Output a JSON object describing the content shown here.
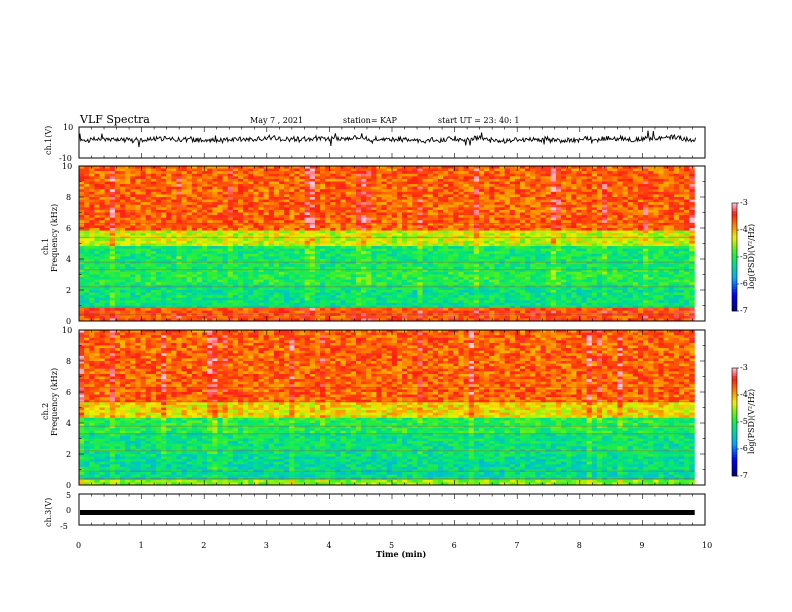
{
  "header": {
    "title": "VLF Spectra",
    "date": "May 7  , 2021",
    "station": "station= KAP",
    "start": "start  UT  =   23: 40: 1"
  },
  "chart_data": [
    {
      "type": "line",
      "ylabel": "ch.1(V)",
      "yticks": [
        "10",
        "-10"
      ],
      "ylim": [
        -10,
        10
      ],
      "xlim": [
        0,
        10
      ],
      "description_series": "ch.1 waveform",
      "y_level": 2
    },
    {
      "type": "heatmap",
      "ylabel_line1": "ch.1",
      "ylabel_line2": "Frequency  (kHz)",
      "yticks": [
        "0",
        "2",
        "4",
        "6",
        "8",
        "10"
      ],
      "ylim": [
        0,
        10
      ],
      "xlim": [
        0,
        10
      ],
      "x_end_min": 9.83,
      "colorbar": {
        "label": "log(PSD)(V²/Hz)",
        "ticks": [
          "-3",
          "-4",
          "-5",
          "-6",
          "-7"
        ],
        "range": [
          -7,
          -3
        ]
      },
      "bands": [
        {
          "f_low": 0,
          "f_high": 0.8,
          "level": -3.6
        },
        {
          "f_low": 0.8,
          "f_high": 2.3,
          "level": -5.2
        },
        {
          "f_low": 2.3,
          "f_high": 3.4,
          "level": -5.0
        },
        {
          "f_low": 3.4,
          "f_high": 4.9,
          "level": -5.1
        },
        {
          "f_low": 4.9,
          "f_high": 5.8,
          "level": -4.4
        },
        {
          "f_low": 5.8,
          "f_high": 10,
          "level": -3.7
        }
      ]
    },
    {
      "type": "heatmap",
      "ylabel_line1": "ch.2",
      "ylabel_line2": "Frequency  (kHz)",
      "yticks": [
        "0",
        "2",
        "4",
        "6",
        "8",
        "10"
      ],
      "ylim": [
        0,
        10
      ],
      "xlim": [
        0,
        10
      ],
      "x_end_min": 9.83,
      "colorbar": {
        "label": "log(PSD)(V²/Hz)",
        "ticks": [
          "-3",
          "-4",
          "-5",
          "-6",
          "-7"
        ],
        "range": [
          -7,
          -3
        ]
      },
      "bands": [
        {
          "f_low": 0,
          "f_high": 0.3,
          "level": -4.6
        },
        {
          "f_low": 0.3,
          "f_high": 1.8,
          "level": -5.3
        },
        {
          "f_low": 1.8,
          "f_high": 3.3,
          "level": -5.2
        },
        {
          "f_low": 3.3,
          "f_high": 4.4,
          "level": -5.0
        },
        {
          "f_low": 4.4,
          "f_high": 5.4,
          "level": -4.2
        },
        {
          "f_low": 5.4,
          "f_high": 10,
          "level": -3.7
        }
      ]
    },
    {
      "type": "line",
      "ylabel": "ch.3(V)",
      "yticks": [
        "5",
        "0",
        "-5"
      ],
      "ylim": [
        -5,
        5
      ],
      "xlim": [
        0,
        10
      ],
      "xlabel": "Time  (min)",
      "xticks": [
        "0",
        "1",
        "2",
        "3",
        "4",
        "5",
        "6",
        "7",
        "8",
        "9",
        "10"
      ],
      "y_level": 0
    }
  ],
  "colors": {
    "axis": "#000000",
    "trace": "#000000",
    "background": "#ffffff"
  }
}
